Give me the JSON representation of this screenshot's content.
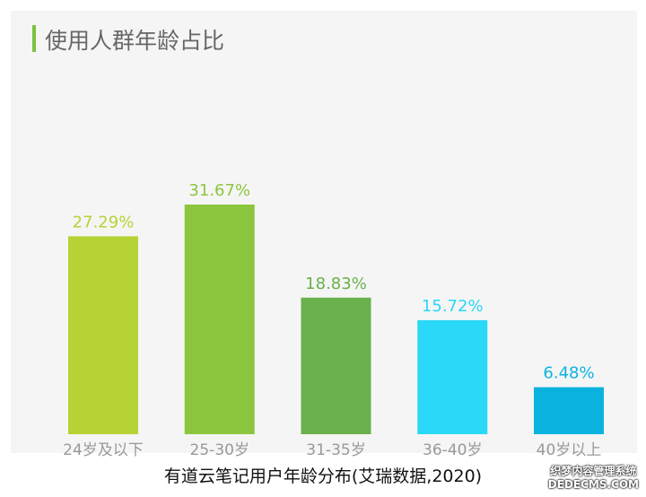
{
  "title": "使用人群年龄占比",
  "caption": "有道云笔记用户年龄分布(艾瑞数据,2020)",
  "watermark": {
    "line1": "织梦内容管理系统",
    "line2": "DEDECMS.COM"
  },
  "chart_data": {
    "type": "bar",
    "title": "使用人群年龄占比",
    "categories": [
      "24岁及以下",
      "25-30岁",
      "31-35岁",
      "36-40岁",
      "40岁以上"
    ],
    "values": [
      27.29,
      31.67,
      18.83,
      15.72,
      6.48
    ],
    "labels": [
      "27.29%",
      "31.67%",
      "18.83%",
      "15.72%",
      "6.48%"
    ],
    "colors": [
      "#b5d334",
      "#8cc63f",
      "#6ab04c",
      "#2ad8f8",
      "#0ab3df"
    ],
    "unit": "%",
    "grid": false,
    "legend": "none"
  }
}
